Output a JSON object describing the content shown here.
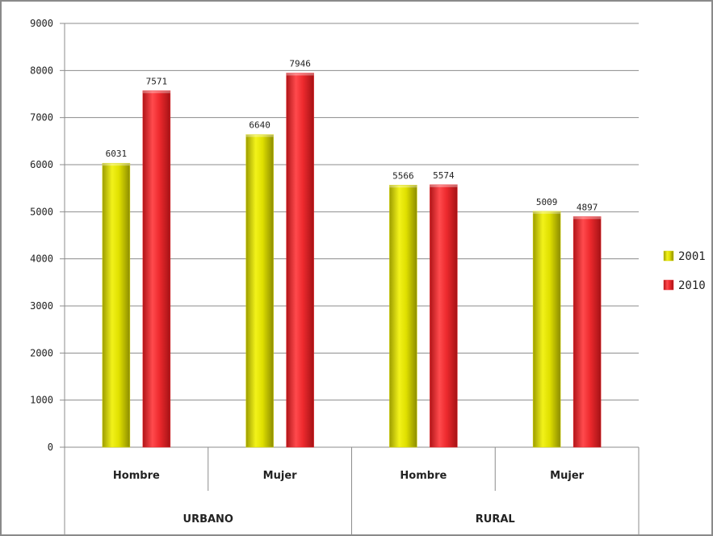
{
  "chart_data": {
    "type": "bar",
    "title": "",
    "xlabel": "",
    "ylabel": "",
    "ylim": [
      0,
      9000
    ],
    "yticks": [
      0,
      1000,
      2000,
      3000,
      4000,
      5000,
      6000,
      7000,
      8000,
      9000
    ],
    "grid": "horizontal",
    "legend_position": "right",
    "categories": [
      "Hombre",
      "Mujer",
      "Hombre",
      "Mujer"
    ],
    "groups": [
      {
        "label": "URBANO",
        "categories": [
          "Hombre",
          "Mujer"
        ]
      },
      {
        "label": "RURAL",
        "categories": [
          "Hombre",
          "Mujer"
        ]
      }
    ],
    "series": [
      {
        "name": "2001",
        "color": "#d6d600",
        "values": [
          6031,
          6640,
          5566,
          5009
        ]
      },
      {
        "name": "2010",
        "color": "#e8262b",
        "values": [
          7571,
          7946,
          5574,
          4897
        ]
      }
    ]
  }
}
